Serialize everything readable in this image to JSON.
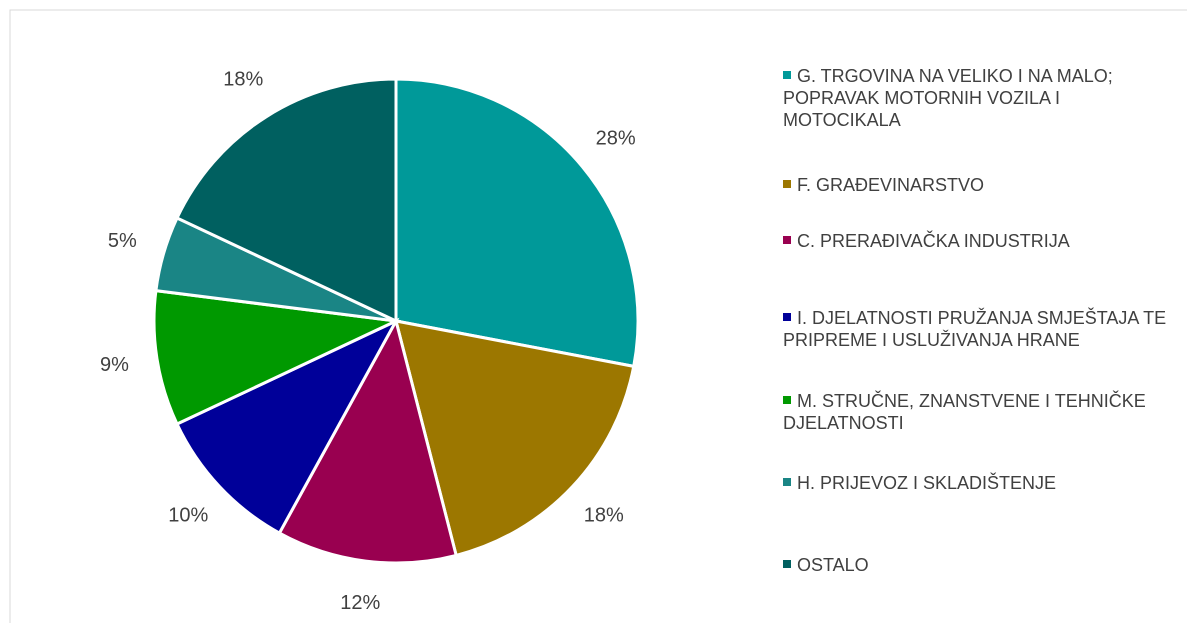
{
  "chart_data": {
    "type": "pie",
    "categories": [
      "G. TRGOVINA NA VELIKO I NA MALO; POPRAVAK MOTORNIH VOZILA I MOTOCIKALA",
      "F. GRAĐEVINARSTVO",
      "C. PRERAĐIVAČKA INDUSTRIJA",
      "I. DJELATNOSTI PRUŽANJA SMJEŠTAJA TE PRIPREME I USLUŽIVANJA HRANE",
      "M. STRUČNE, ZNANSTVENE I TEHNIČKE DJELATNOSTI",
      "H. PRIJEVOZ I SKLADIŠTENJE",
      "OSTALO"
    ],
    "values": [
      28,
      18,
      12,
      10,
      9,
      5,
      18
    ],
    "value_labels": [
      "28%",
      "18%",
      "12%",
      "10%",
      "9%",
      "5%",
      "18%"
    ],
    "colors": [
      "#009999",
      "#9c7700",
      "#990050",
      "#000099",
      "#009900",
      "#1a8585",
      "#006060"
    ],
    "legend": "right"
  }
}
